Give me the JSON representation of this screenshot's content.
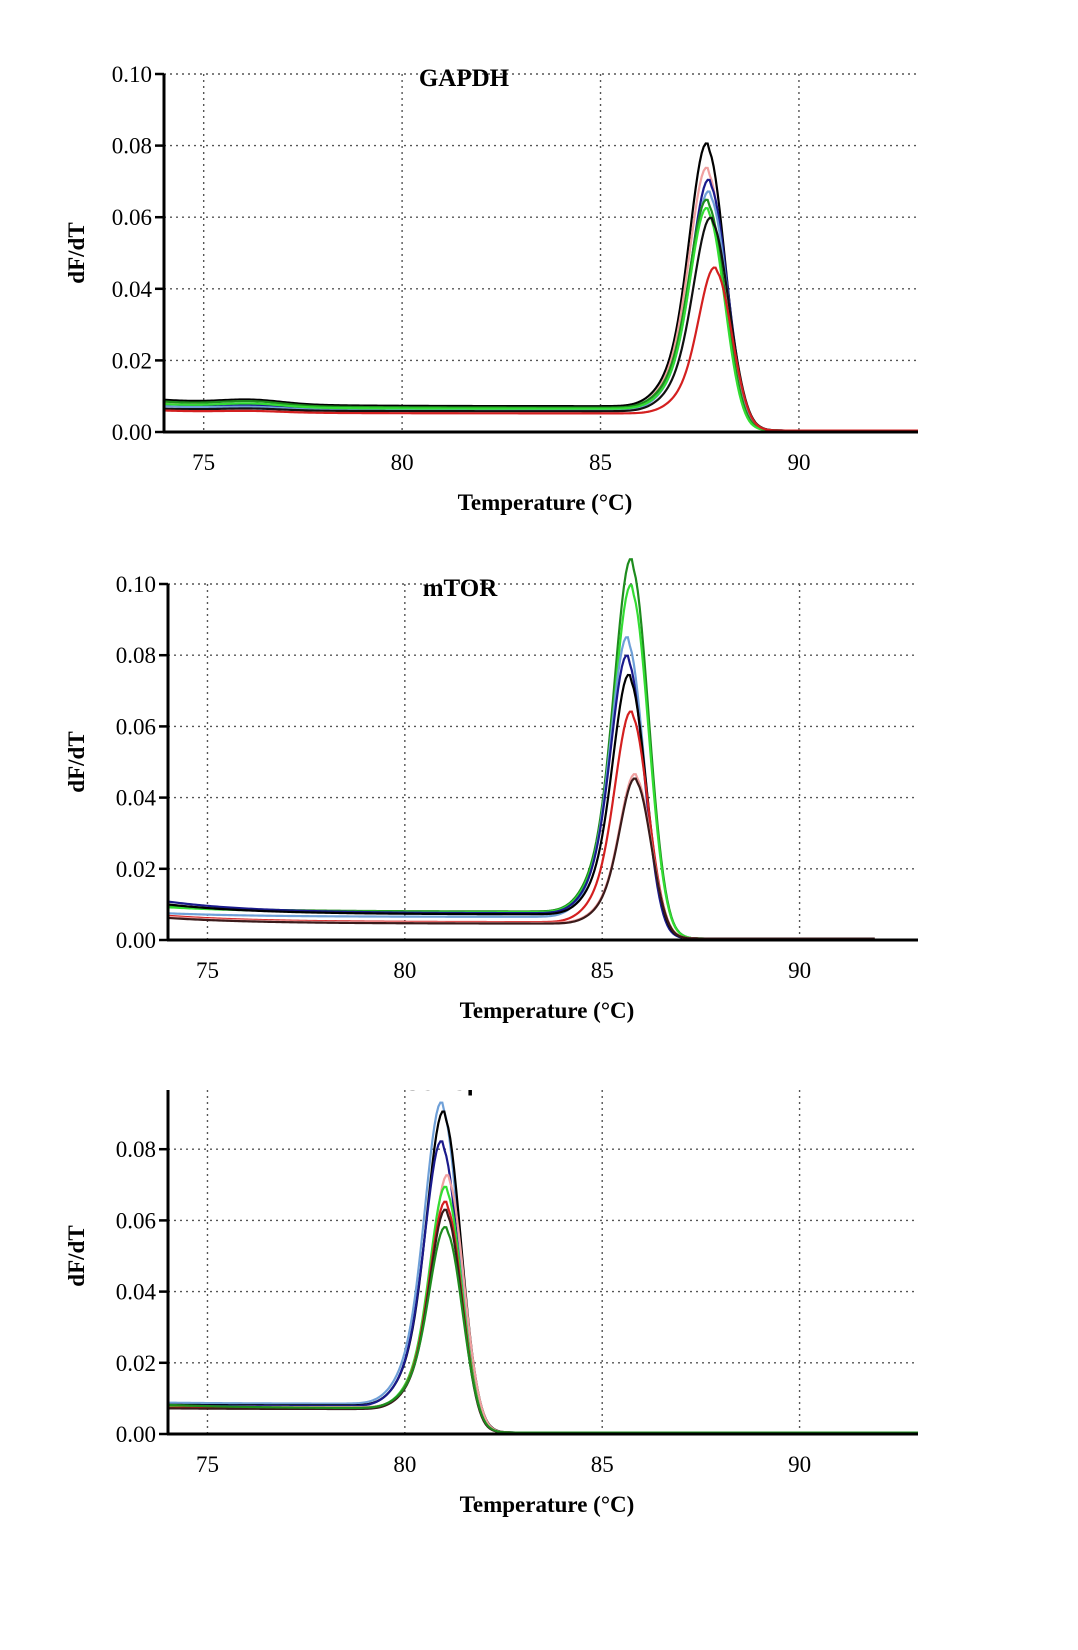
{
  "chart_data": [
    {
      "type": "line",
      "title": "GAPDH",
      "xlabel": "Temperature (°C)",
      "ylabel": "dF/dT",
      "xlim": [
        74,
        93
      ],
      "ylim": [
        0,
        0.1
      ],
      "xticks": [
        "75",
        "80",
        "85",
        "90"
      ],
      "yticks": [
        "0.00",
        "0.02",
        "0.04",
        "0.06",
        "0.08",
        "0.10"
      ],
      "grid": true,
      "legend": "none",
      "series": [
        {
          "color": "#000000",
          "peak_x": 87.7,
          "peak_y": 0.072,
          "width": 0.62,
          "base_start": 0.009,
          "base_mid": 0.0072,
          "hump": 0.0012
        },
        {
          "color": "#f0a0a0",
          "peak_x": 87.7,
          "peak_y": 0.066,
          "width": 0.62,
          "base_start": 0.008,
          "base_mid": 0.0065,
          "hump": 0.0008
        },
        {
          "color": "#1a1a8c",
          "peak_x": 87.75,
          "peak_y": 0.063,
          "width": 0.62,
          "base_start": 0.0075,
          "base_mid": 0.0062,
          "hump": 0.0008
        },
        {
          "color": "#6fa0d8",
          "peak_x": 87.75,
          "peak_y": 0.06,
          "width": 0.62,
          "base_start": 0.0072,
          "base_mid": 0.006,
          "hump": 0.0006
        },
        {
          "color": "#1e8c1e",
          "peak_x": 87.7,
          "peak_y": 0.057,
          "width": 0.62,
          "base_start": 0.0085,
          "base_mid": 0.0068,
          "hump": 0.0012
        },
        {
          "color": "#33dd33",
          "peak_x": 87.7,
          "peak_y": 0.055,
          "width": 0.6,
          "base_start": 0.0078,
          "base_mid": 0.0065,
          "hump": 0.001
        },
        {
          "color": "#111111",
          "peak_x": 87.8,
          "peak_y": 0.053,
          "width": 0.62,
          "base_start": 0.0065,
          "base_mid": 0.0058,
          "hump": 0.0005
        },
        {
          "color": "#d42020",
          "peak_x": 87.9,
          "peak_y": 0.04,
          "width": 0.58,
          "base_start": 0.006,
          "base_mid": 0.0052,
          "hump": 0.0004
        }
      ]
    },
    {
      "type": "line",
      "title": "mTOR",
      "xlabel": "Temperature (°C)",
      "ylabel": "dF/dT",
      "xlim": [
        74,
        93
      ],
      "ylim": [
        0,
        0.1
      ],
      "xticks": [
        "75",
        "80",
        "85",
        "90"
      ],
      "yticks": [
        "0.00",
        "0.02",
        "0.04",
        "0.06",
        "0.08",
        "0.10"
      ],
      "grid": true,
      "legend": "none",
      "series": [
        {
          "color": "#1e8c1e",
          "peak_x": 85.75,
          "peak_y": 0.097,
          "width": 0.6,
          "base_start": 0.0095,
          "base_mid": 0.008,
          "hump": 0
        },
        {
          "color": "#33dd33",
          "peak_x": 85.75,
          "peak_y": 0.09,
          "width": 0.6,
          "base_start": 0.0092,
          "base_mid": 0.0078,
          "hump": 0
        },
        {
          "color": "#6fa0d8",
          "peak_x": 85.65,
          "peak_y": 0.077,
          "width": 0.58,
          "base_start": 0.0075,
          "base_mid": 0.0065,
          "hump": 0
        },
        {
          "color": "#1a1a8c",
          "peak_x": 85.65,
          "peak_y": 0.071,
          "width": 0.58,
          "base_start": 0.0108,
          "base_mid": 0.0075,
          "hump": 0
        },
        {
          "color": "#000000",
          "peak_x": 85.7,
          "peak_y": 0.066,
          "width": 0.58,
          "base_start": 0.01,
          "base_mid": 0.0072,
          "hump": 0
        },
        {
          "color": "#d42020",
          "peak_x": 85.75,
          "peak_y": 0.058,
          "width": 0.58,
          "base_start": 0.0068,
          "base_mid": 0.005,
          "hump": 0
        },
        {
          "color": "#f0a0a0",
          "peak_x": 85.85,
          "peak_y": 0.041,
          "width": 0.55,
          "base_start": 0.0065,
          "base_mid": 0.0048,
          "hump": 0
        },
        {
          "color": "#3a1a1a",
          "peak_x": 85.85,
          "peak_y": 0.04,
          "width": 0.55,
          "base_start": 0.0062,
          "base_mid": 0.0046,
          "hump": 0
        }
      ]
    },
    {
      "type": "line",
      "title": "GSK3β",
      "xlabel": "Temperature (°C)",
      "ylabel": "dF/dT",
      "xlim": [
        74,
        93
      ],
      "ylim": [
        0,
        0.1
      ],
      "xticks": [
        "75",
        "80",
        "85",
        "90"
      ],
      "yticks": [
        "0.00",
        "0.02",
        "0.04",
        "0.06",
        "0.08",
        "0.10"
      ],
      "grid": true,
      "legend": "none",
      "series": [
        {
          "color": "#6fa0d8",
          "peak_x": 80.95,
          "peak_y": 0.083,
          "width": 0.6,
          "base_start": 0.0088,
          "base_mid": 0.0085,
          "hump": 0
        },
        {
          "color": "#000000",
          "peak_x": 81.0,
          "peak_y": 0.081,
          "width": 0.6,
          "base_start": 0.0082,
          "base_mid": 0.008,
          "hump": 0
        },
        {
          "color": "#1a1a8c",
          "peak_x": 80.95,
          "peak_y": 0.073,
          "width": 0.6,
          "base_start": 0.008,
          "base_mid": 0.0078,
          "hump": 0
        },
        {
          "color": "#f0a0a0",
          "peak_x": 81.1,
          "peak_y": 0.064,
          "width": 0.56,
          "base_start": 0.0078,
          "base_mid": 0.0075,
          "hump": 0
        },
        {
          "color": "#33dd33",
          "peak_x": 81.05,
          "peak_y": 0.061,
          "width": 0.56,
          "base_start": 0.0076,
          "base_mid": 0.0073,
          "hump": 0
        },
        {
          "color": "#d42020",
          "peak_x": 81.05,
          "peak_y": 0.057,
          "width": 0.56,
          "base_start": 0.0074,
          "base_mid": 0.0072,
          "hump": 0
        },
        {
          "color": "#3a1a1a",
          "peak_x": 81.05,
          "peak_y": 0.055,
          "width": 0.56,
          "base_start": 0.0072,
          "base_mid": 0.007,
          "hump": 0
        },
        {
          "color": "#1e8c1e",
          "peak_x": 81.05,
          "peak_y": 0.05,
          "width": 0.58,
          "base_start": 0.0082,
          "base_mid": 0.0072,
          "hump": 0
        }
      ]
    }
  ]
}
